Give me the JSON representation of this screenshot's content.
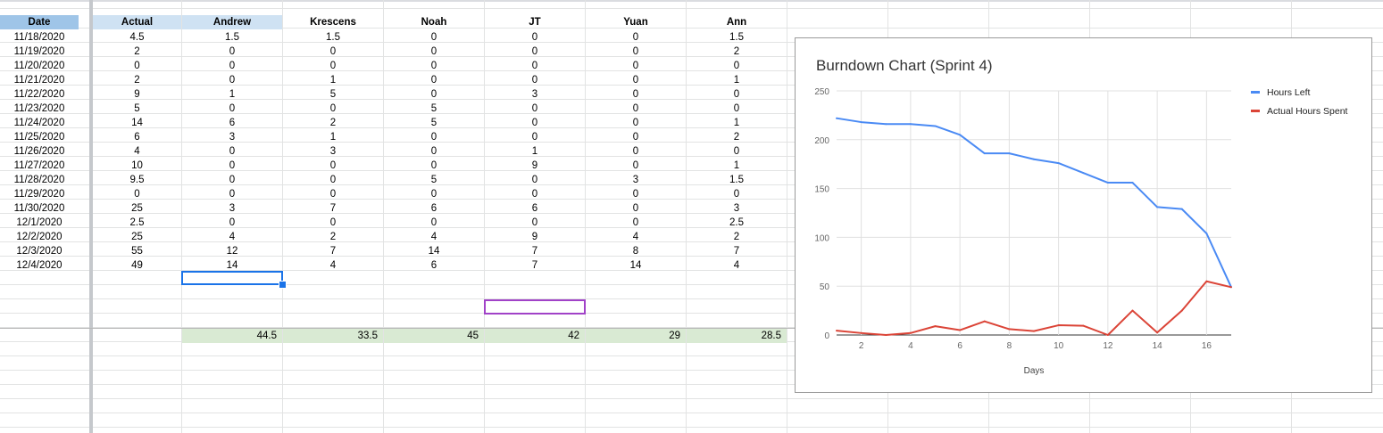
{
  "headers": [
    "Date",
    "Actual",
    "Andrew",
    "Krescens",
    "Noah",
    "JT",
    "Yuan",
    "Ann"
  ],
  "rows": [
    [
      "11/18/2020",
      "4.5",
      "1.5",
      "1.5",
      "0",
      "0",
      "0",
      "1.5"
    ],
    [
      "11/19/2020",
      "2",
      "0",
      "0",
      "0",
      "0",
      "0",
      "2"
    ],
    [
      "11/20/2020",
      "0",
      "0",
      "0",
      "0",
      "0",
      "0",
      "0"
    ],
    [
      "11/21/2020",
      "2",
      "0",
      "1",
      "0",
      "0",
      "0",
      "1"
    ],
    [
      "11/22/2020",
      "9",
      "1",
      "5",
      "0",
      "3",
      "0",
      "0"
    ],
    [
      "11/23/2020",
      "5",
      "0",
      "0",
      "5",
      "0",
      "0",
      "0"
    ],
    [
      "11/24/2020",
      "14",
      "6",
      "2",
      "5",
      "0",
      "0",
      "1"
    ],
    [
      "11/25/2020",
      "6",
      "3",
      "1",
      "0",
      "0",
      "0",
      "2"
    ],
    [
      "11/26/2020",
      "4",
      "0",
      "3",
      "0",
      "1",
      "0",
      "0"
    ],
    [
      "11/27/2020",
      "10",
      "0",
      "0",
      "0",
      "9",
      "0",
      "1"
    ],
    [
      "11/28/2020",
      "9.5",
      "0",
      "0",
      "5",
      "0",
      "3",
      "1.5"
    ],
    [
      "11/29/2020",
      "0",
      "0",
      "0",
      "0",
      "0",
      "0",
      "0"
    ],
    [
      "11/30/2020",
      "25",
      "3",
      "7",
      "6",
      "6",
      "0",
      "3"
    ],
    [
      "12/1/2020",
      "2.5",
      "0",
      "0",
      "0",
      "0",
      "0",
      "2.5"
    ],
    [
      "12/2/2020",
      "25",
      "4",
      "2",
      "4",
      "9",
      "4",
      "2"
    ],
    [
      "12/3/2020",
      "55",
      "12",
      "7",
      "14",
      "7",
      "8",
      "7"
    ],
    [
      "12/4/2020",
      "49",
      "14",
      "4",
      "6",
      "7",
      "14",
      "4"
    ]
  ],
  "totals": [
    "44.5",
    "33.5",
    "45",
    "42",
    "29",
    "28.5"
  ],
  "chart_data": {
    "type": "line",
    "title": "Burndown Chart (Sprint 4)",
    "xlabel": "Days",
    "ylabel": "",
    "x": [
      1,
      2,
      3,
      4,
      5,
      6,
      7,
      8,
      9,
      10,
      11,
      12,
      13,
      14,
      15,
      16,
      17
    ],
    "xticks": [
      2,
      4,
      6,
      8,
      10,
      12,
      14,
      16
    ],
    "yticks": [
      0,
      50,
      100,
      150,
      200,
      250
    ],
    "xlim": [
      1,
      17
    ],
    "ylim": [
      0,
      250
    ],
    "grid": true,
    "legend_position": "right",
    "series": [
      {
        "name": "Hours Left",
        "color": "#4a8af4",
        "values": [
          222,
          218,
          216,
          216,
          214,
          205,
          186,
          186,
          180,
          176,
          166,
          156,
          156,
          131,
          129,
          104,
          49
        ]
      },
      {
        "name": "Actual Hours Spent",
        "color": "#db4437",
        "values": [
          4.5,
          2,
          0,
          2,
          9,
          5,
          14,
          6,
          4,
          10,
          9.5,
          0,
          25,
          2.5,
          25,
          55,
          49
        ]
      }
    ]
  }
}
